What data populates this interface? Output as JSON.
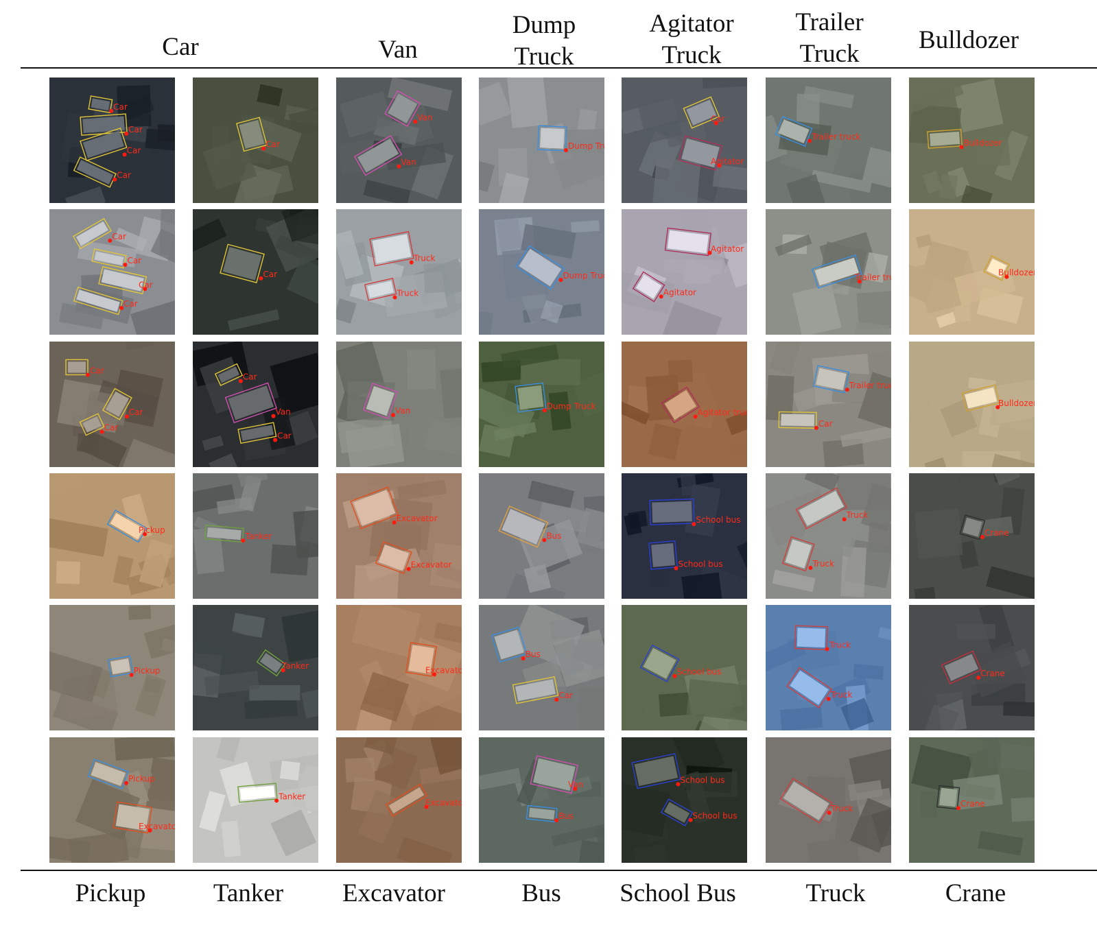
{
  "column_headers": [
    "Car",
    "Van",
    "Dump\nTruck",
    "Agitator\nTruck",
    "Trailer\nTruck",
    "Bulldozer"
  ],
  "column_footers": [
    "Pickup",
    "Tanker",
    "Excavator",
    "Bus",
    "School Bus",
    "Truck",
    "Crane"
  ],
  "tiles": [
    {
      "bg": "#2b3138",
      "boxes": [
        {
          "label": "Car",
          "color": "#e0c43a"
        },
        {
          "label": "Car",
          "color": "#e0c43a"
        },
        {
          "label": "Car",
          "color": "#e0c43a"
        },
        {
          "label": "Car",
          "color": "#e0c43a"
        }
      ]
    },
    {
      "bg": "#4a5040",
      "boxes": [
        {
          "label": "Car",
          "color": "#e0c43a"
        }
      ]
    },
    {
      "bg": "#555a5a",
      "boxes": [
        {
          "label": "Van",
          "color": "#d050b0"
        },
        {
          "label": "Van",
          "color": "#d050b0"
        }
      ]
    },
    {
      "bg": "#8a8e90",
      "boxes": [
        {
          "label": "Dump Truck",
          "color": "#3a8ee0"
        }
      ]
    },
    {
      "bg": "#565c62",
      "boxes": [
        {
          "label": "Car",
          "color": "#e0c43a"
        },
        {
          "label": "Agitator",
          "color": "#b0305a"
        }
      ]
    },
    {
      "bg": "#6f7770",
      "boxes": [
        {
          "label": "Trailer truck",
          "color": "#3a8ee0"
        }
      ]
    },
    {
      "bg": "#6a7058",
      "boxes": [
        {
          "label": "Bulldozer",
          "color": "#d0a030"
        }
      ]
    },
    {
      "bg": "#8a8e92",
      "boxes": [
        {
          "label": "Car",
          "color": "#e0c43a"
        },
        {
          "label": "Car",
          "color": "#e0c43a"
        },
        {
          "label": "Car",
          "color": "#e0c43a"
        },
        {
          "label": "Car",
          "color": "#e0c43a"
        }
      ]
    },
    {
      "bg": "#2e3530",
      "boxes": [
        {
          "label": "Car",
          "color": "#e0c43a"
        }
      ]
    },
    {
      "bg": "#9aa0a4",
      "boxes": [
        {
          "label": "Truck",
          "color": "#d04040"
        },
        {
          "label": "Truck",
          "color": "#d04040"
        }
      ]
    },
    {
      "bg": "#7a8290",
      "boxes": [
        {
          "label": "Dump Truck",
          "color": "#3a8ee0"
        }
      ]
    },
    {
      "bg": "#a8a4b0",
      "boxes": [
        {
          "label": "Agitator",
          "color": "#b0305a"
        },
        {
          "label": "Agitator",
          "color": "#b0305a"
        }
      ]
    },
    {
      "bg": "#8c9088",
      "boxes": [
        {
          "label": "Trailer truck",
          "color": "#3a8ee0"
        }
      ]
    },
    {
      "bg": "#c8b08a",
      "boxes": [
        {
          "label": "Bulldozer",
          "color": "#d0a030"
        }
      ]
    },
    {
      "bg": "#6b6258",
      "boxes": [
        {
          "label": "Car",
          "color": "#e0c43a"
        },
        {
          "label": "Car",
          "color": "#e0c43a"
        },
        {
          "label": "Car",
          "color": "#e0c43a"
        }
      ]
    },
    {
      "bg": "#2b2e30",
      "boxes": [
        {
          "label": "Car",
          "color": "#e0c43a"
        },
        {
          "label": "Van",
          "color": "#d050b0"
        },
        {
          "label": "Car",
          "color": "#e0c43a"
        }
      ]
    },
    {
      "bg": "#7c8078",
      "boxes": [
        {
          "label": "Van",
          "color": "#d050b0"
        }
      ]
    },
    {
      "bg": "#4e6040",
      "boxes": [
        {
          "label": "Dump Truck",
          "color": "#3a8ee0"
        }
      ]
    },
    {
      "bg": "#9a6a48",
      "boxes": [
        {
          "label": "Agitator truck",
          "color": "#b0305a"
        }
      ]
    },
    {
      "bg": "#8a8880",
      "boxes": [
        {
          "label": "Trailer truck",
          "color": "#3a8ee0"
        },
        {
          "label": "Car",
          "color": "#e0c43a"
        }
      ]
    },
    {
      "bg": "#b8a888",
      "boxes": [
        {
          "label": "Bulldozer",
          "color": "#d0a030"
        }
      ]
    },
    {
      "bg": "#b89870",
      "boxes": [
        {
          "label": "Pickup",
          "color": "#3a8ee0"
        }
      ]
    },
    {
      "bg": "#6a6e6c",
      "boxes": [
        {
          "label": "Tanker",
          "color": "#70a040"
        }
      ]
    },
    {
      "bg": "#a0806a",
      "boxes": [
        {
          "label": "Excavator",
          "color": "#e05020"
        },
        {
          "label": "Excavator",
          "color": "#e05020"
        }
      ]
    },
    {
      "bg": "#7a7c80",
      "boxes": [
        {
          "label": "Bus",
          "color": "#e0a040"
        }
      ]
    },
    {
      "bg": "#2a3040",
      "boxes": [
        {
          "label": "School bus",
          "color": "#2a40d0"
        },
        {
          "label": "School bus",
          "color": "#2a40d0"
        }
      ]
    },
    {
      "bg": "#8a8c88",
      "boxes": [
        {
          "label": "Truck",
          "color": "#d04040"
        },
        {
          "label": "Truck",
          "color": "#d04040"
        }
      ]
    },
    {
      "bg": "#4a4e48",
      "boxes": [
        {
          "label": "Crane",
          "color": "#303030"
        }
      ]
    },
    {
      "bg": "#8e8678",
      "boxes": [
        {
          "label": "Pickup",
          "color": "#3a8ee0"
        }
      ]
    },
    {
      "bg": "#3e4444",
      "boxes": [
        {
          "label": "Tanker",
          "color": "#70a040"
        }
      ]
    },
    {
      "bg": "#a88060",
      "boxes": [
        {
          "label": "Excavator",
          "color": "#e05020"
        }
      ]
    },
    {
      "bg": "#777a7a",
      "boxes": [
        {
          "label": "Bus",
          "color": "#3a8ee0"
        },
        {
          "label": "Car",
          "color": "#e0c43a"
        }
      ]
    },
    {
      "bg": "#5e6a50",
      "boxes": [
        {
          "label": "School bus",
          "color": "#2a40d0"
        }
      ]
    },
    {
      "bg": "#5a80b0",
      "boxes": [
        {
          "label": "Truck",
          "color": "#d04040"
        },
        {
          "label": "Truck",
          "color": "#d04040"
        }
      ]
    },
    {
      "bg": "#4a4c4e",
      "boxes": [
        {
          "label": "Crane",
          "color": "#c03040"
        }
      ]
    },
    {
      "bg": "#8a8070",
      "boxes": [
        {
          "label": "Pickup",
          "color": "#3a8ee0"
        },
        {
          "label": "Excavator",
          "color": "#e05020"
        }
      ]
    },
    {
      "bg": "#c4c4c0",
      "boxes": [
        {
          "label": "Tanker",
          "color": "#70a040"
        }
      ]
    },
    {
      "bg": "#8a6a50",
      "boxes": [
        {
          "label": "Excavator",
          "color": "#e05020"
        }
      ]
    },
    {
      "bg": "#5c6860",
      "boxes": [
        {
          "label": "Van",
          "color": "#d050b0"
        },
        {
          "label": "Bus",
          "color": "#3a8ee0"
        }
      ]
    },
    {
      "bg": "#283028",
      "boxes": [
        {
          "label": "School bus",
          "color": "#2a40d0"
        },
        {
          "label": "School bus",
          "color": "#2a40d0"
        }
      ]
    },
    {
      "bg": "#787470",
      "boxes": [
        {
          "label": "Truck",
          "color": "#d04040"
        }
      ]
    },
    {
      "bg": "#5e6a58",
      "boxes": [
        {
          "label": "Crane",
          "color": "#303030"
        }
      ]
    }
  ]
}
